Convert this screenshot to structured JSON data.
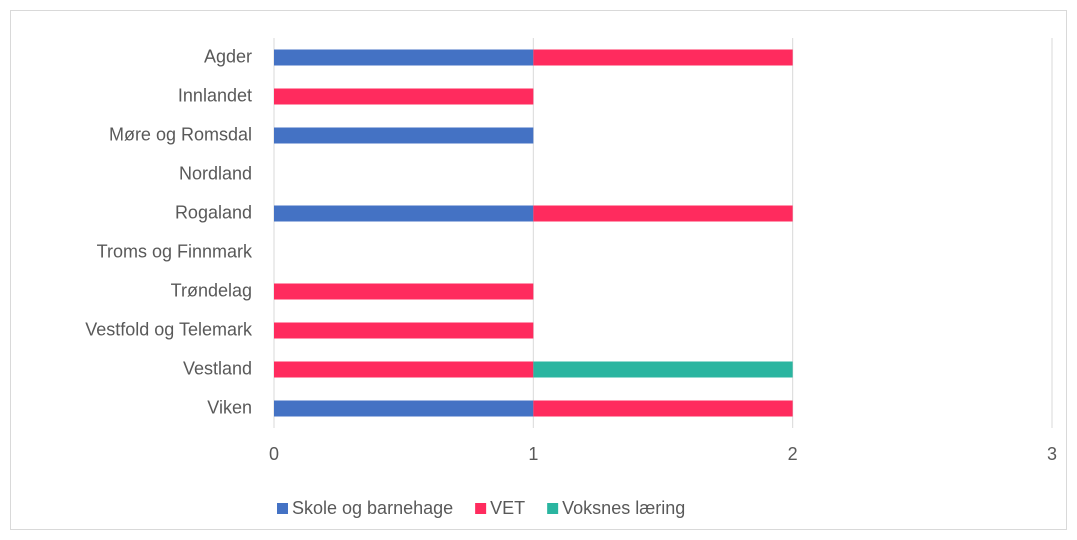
{
  "chart_data": {
    "type": "bar",
    "orientation": "horizontal",
    "stacked": true,
    "categories": [
      "Agder",
      "Innlandet",
      "Møre og Romsdal",
      "Nordland",
      "Rogaland",
      "Troms og Finnmark",
      "Trøndelag",
      "Vestfold og Telemark",
      "Vestland",
      "Viken"
    ],
    "series": [
      {
        "name": "Skole og barnehage",
        "color": "#4472c4",
        "values": [
          1,
          0,
          1,
          0,
          1,
          0,
          0,
          0,
          0,
          1
        ]
      },
      {
        "name": "VET",
        "color": "#ff2b5e",
        "values": [
          1,
          1,
          0,
          0,
          1,
          0,
          1,
          1,
          1,
          1
        ]
      },
      {
        "name": "Voksnes læring",
        "color": "#2ab5a0",
        "values": [
          0,
          0,
          0,
          0,
          0,
          0,
          0,
          0,
          1,
          0
        ]
      }
    ],
    "xlim": [
      0,
      3
    ],
    "xticks": [
      0,
      1,
      2,
      3
    ],
    "grid": true,
    "legend": "bottom"
  }
}
